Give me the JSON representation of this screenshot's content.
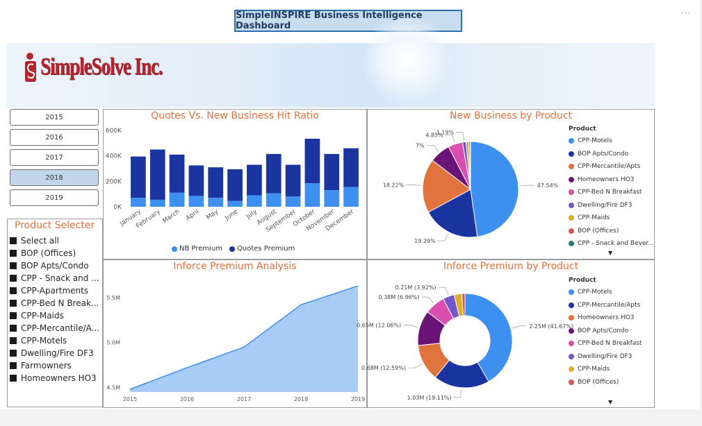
{
  "dashboard_title": "SimpleINSPIRE Business Intelligence Dashboard",
  "more_options_icon": "ellipsis-icon",
  "logo_text": "SimpleSolve Inc.",
  "years": [
    {
      "label": "2015",
      "selected": false
    },
    {
      "label": "2016",
      "selected": false
    },
    {
      "label": "2017",
      "selected": false
    },
    {
      "label": "2018",
      "selected": true
    },
    {
      "label": "2019",
      "selected": false
    }
  ],
  "product_selecter": {
    "title": "Product Selecter",
    "items": [
      "Select all",
      "BOP (Offices)",
      "BOP Apts/Condo",
      "CPP - Snack and ...",
      "CPP-Apartments",
      "CPP-Bed N Break...",
      "CPP-Maids",
      "CPP-Mercantile/A...",
      "CPP-Motels",
      "Dwelling/Fire DF3",
      "Farmowners",
      "Homeowners HO3"
    ]
  },
  "charts": {
    "quotes_vs_nb": {
      "title": "Quotes Vs. New Business Hit Ratio"
    },
    "nb_by_product": {
      "title": "New Business by Product",
      "legend_title": "Product"
    },
    "inforce_analysis": {
      "title": "Inforce Premium Analysis"
    },
    "inforce_by_product": {
      "title": "Inforce Premium by Product",
      "legend_title": "Product"
    }
  },
  "colors": {
    "quotes_premium": "#1a34a0",
    "nb_premium": "#3d8ff0",
    "title_orange": "#e86f3a",
    "area_fill": "#a9ccf7",
    "area_line": "#3d8ff0"
  },
  "chart_data": [
    {
      "type": "bar",
      "title": "Quotes Vs. New Business Hit Ratio",
      "categories": [
        "January",
        "February",
        "March",
        "April",
        "May",
        "June",
        "July",
        "August",
        "September",
        "October",
        "November",
        "December"
      ],
      "series": [
        {
          "name": "NB Premium",
          "values": [
            70,
            55,
            110,
            85,
            70,
            45,
            90,
            105,
            80,
            185,
            130,
            155
          ]
        },
        {
          "name": "Quotes Premium",
          "values": [
            325,
            395,
            300,
            240,
            240,
            250,
            240,
            310,
            250,
            350,
            285,
            305
          ]
        }
      ],
      "stacked": true,
      "yticks": [
        "0K",
        "200K",
        "400K",
        "600K"
      ],
      "ylim": [
        0,
        600
      ],
      "legend": "bottom"
    },
    {
      "type": "pie",
      "title": "New Business by Product",
      "legend_title": "Product",
      "slices": [
        {
          "name": "CPP-Motels",
          "value": 47.54,
          "label": "47.54%",
          "color": "#3d8ff0"
        },
        {
          "name": "BOP Apts/Condo",
          "value": 19.29,
          "label": "19.29%",
          "color": "#1a34a0"
        },
        {
          "name": "CPP-Mercantile/Apts",
          "value": 18.22,
          "label": "18.22%",
          "color": "#e0733e"
        },
        {
          "name": "Homeowners HO3",
          "value": 7.0,
          "label": "7%",
          "color": "#6a1478"
        },
        {
          "name": "CPP-Bed N Breakfast",
          "value": 4.85,
          "label": "4.85%",
          "color": "#d94fb0"
        },
        {
          "name": "Dwelling/Fire DF3",
          "value": 1.19,
          "label": "1.19%",
          "color": "#7356c9"
        },
        {
          "name": "CPP-Maids",
          "value": 0.9,
          "label": "",
          "color": "#e0ae2e"
        },
        {
          "name": "BOP (Offices)",
          "value": 0.5,
          "label": "",
          "color": "#d45a55"
        },
        {
          "name": "CPP - Snack and Bever...",
          "value": 0.1,
          "label": "",
          "color": "#2e7d7d"
        }
      ],
      "legend": "right"
    },
    {
      "type": "area",
      "title": "Inforce Premium Analysis",
      "x": [
        "2015",
        "2016",
        "2017",
        "2018",
        "2019"
      ],
      "values": [
        4.48,
        4.72,
        4.95,
        5.42,
        5.63
      ],
      "yticks": [
        "4.5M",
        "5.0M",
        "5.5M"
      ],
      "ylim": [
        4.45,
        5.7
      ]
    },
    {
      "type": "pie",
      "donut": true,
      "title": "Inforce Premium by Product",
      "legend_title": "Product",
      "slices": [
        {
          "name": "CPP-Motels",
          "value": 41.67,
          "label": "2.25M (41.67%)",
          "color": "#3d8ff0"
        },
        {
          "name": "CPP-Mercantile/Apts",
          "value": 19.11,
          "label": "1.03M (19.11%)",
          "color": "#1a34a0"
        },
        {
          "name": "Homeowners HO3",
          "value": 12.59,
          "label": "0.68M (12.59%)",
          "color": "#e0733e"
        },
        {
          "name": "BOP Apts/Condo",
          "value": 12.06,
          "label": "0.65M (12.06%)",
          "color": "#6a1478"
        },
        {
          "name": "CPP-Bed N Breakfast",
          "value": 6.96,
          "label": "0.38M (6.96%)",
          "color": "#d94fb0"
        },
        {
          "name": "Dwelling/Fire DF3",
          "value": 3.92,
          "label": "0.21M (3.92%)",
          "color": "#7356c9"
        },
        {
          "name": "CPP-Maids",
          "value": 2.6,
          "label": "",
          "color": "#e0ae2e"
        },
        {
          "name": "BOP (Offices)",
          "value": 1.09,
          "label": "",
          "color": "#d45a55"
        }
      ],
      "legend": "right"
    }
  ]
}
